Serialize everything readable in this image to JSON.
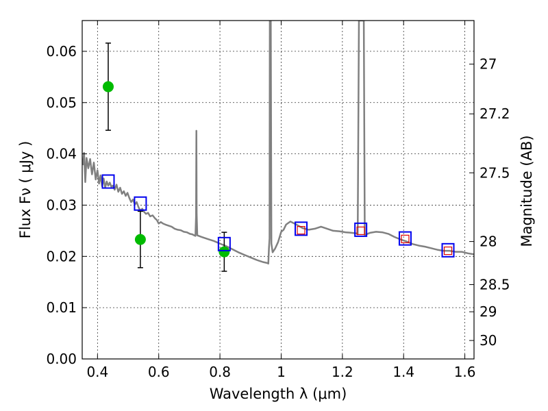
{
  "chart_data": {
    "type": "scatter",
    "xlabel": "Wavelength  λ (μm)",
    "ylabel": "Flux  Fν  ( μJy )",
    "y2label": "Magnitude (AB)",
    "xlim": [
      0.35,
      1.63
    ],
    "ylim": [
      0.0,
      0.066
    ],
    "grid": true,
    "x_ticks": [
      0.4,
      0.6,
      0.8,
      1.0,
      1.2,
      1.4,
      1.6
    ],
    "x_tick_labels": [
      "0.4",
      "0.6",
      "0.8",
      "1",
      "1.2",
      "1.4",
      "1.6"
    ],
    "y_ticks": [
      0.0,
      0.01,
      0.02,
      0.03,
      0.04,
      0.05,
      0.06
    ],
    "y_tick_labels": [
      "0.00",
      "0.01",
      "0.02",
      "0.03",
      "0.04",
      "0.05",
      "0.06"
    ],
    "y2_ticks": [
      {
        "label": "27",
        "flux": 0.0575
      },
      {
        "label": "27.2",
        "flux": 0.0478
      },
      {
        "label": "27.5",
        "flux": 0.0363
      },
      {
        "label": "28",
        "flux": 0.0229
      },
      {
        "label": "28.5",
        "flux": 0.0145
      },
      {
        "label": "29",
        "flux": 0.0092
      },
      {
        "label": "30",
        "flux": 0.0036
      }
    ],
    "observed_points": {
      "color": "#00bb00",
      "points": [
        {
          "x": 0.435,
          "y": 0.0531,
          "err": 0.0085
        },
        {
          "x": 0.54,
          "y": 0.0233,
          "err": 0.0055
        },
        {
          "x": 0.814,
          "y": 0.0209,
          "err": 0.0038
        }
      ]
    },
    "model_synthetic_boxes": {
      "color": "#0000ee",
      "points": [
        {
          "x": 0.435,
          "y": 0.0346
        },
        {
          "x": 0.54,
          "y": 0.0303
        },
        {
          "x": 0.814,
          "y": 0.0224
        },
        {
          "x": 1.065,
          "y": 0.0254
        },
        {
          "x": 1.26,
          "y": 0.0252
        },
        {
          "x": 1.405,
          "y": 0.0235
        },
        {
          "x": 1.545,
          "y": 0.0212
        }
      ]
    },
    "upper_limit_boxes": {
      "color": "#dd0000",
      "points": [
        {
          "x": 1.065,
          "y": 0.0251
        },
        {
          "x": 1.26,
          "y": 0.025
        },
        {
          "x": 1.405,
          "y": 0.0234
        },
        {
          "x": 1.545,
          "y": 0.0211
        }
      ]
    },
    "model_spectrum": {
      "color": "#808080",
      "points": [
        [
          0.352,
          0.0378
        ],
        [
          0.356,
          0.0402
        ],
        [
          0.36,
          0.0345
        ],
        [
          0.364,
          0.0392
        ],
        [
          0.37,
          0.0372
        ],
        [
          0.376,
          0.039
        ],
        [
          0.382,
          0.036
        ],
        [
          0.388,
          0.0383
        ],
        [
          0.394,
          0.035
        ],
        [
          0.4,
          0.0368
        ],
        [
          0.405,
          0.0342
        ],
        [
          0.41,
          0.0358
        ],
        [
          0.415,
          0.0337
        ],
        [
          0.42,
          0.0352
        ],
        [
          0.425,
          0.0334
        ],
        [
          0.43,
          0.0346
        ],
        [
          0.435,
          0.0338
        ],
        [
          0.44,
          0.0344
        ],
        [
          0.445,
          0.0336
        ],
        [
          0.45,
          0.0338
        ],
        [
          0.456,
          0.033
        ],
        [
          0.462,
          0.034
        ],
        [
          0.468,
          0.0326
        ],
        [
          0.474,
          0.0334
        ],
        [
          0.48,
          0.0322
        ],
        [
          0.486,
          0.0327
        ],
        [
          0.492,
          0.0318
        ],
        [
          0.498,
          0.0324
        ],
        [
          0.504,
          0.0314
        ],
        [
          0.51,
          0.0306
        ],
        [
          0.516,
          0.0311
        ],
        [
          0.522,
          0.0301
        ],
        [
          0.528,
          0.0306
        ],
        [
          0.534,
          0.0296
        ],
        [
          0.54,
          0.0289
        ],
        [
          0.546,
          0.0293
        ],
        [
          0.552,
          0.0287
        ],
        [
          0.558,
          0.0283
        ],
        [
          0.565,
          0.0285
        ],
        [
          0.572,
          0.0278
        ],
        [
          0.58,
          0.028
        ],
        [
          0.588,
          0.0274
        ],
        [
          0.594,
          0.0271
        ],
        [
          0.6,
          0.0264
        ],
        [
          0.607,
          0.0267
        ],
        [
          0.614,
          0.0264
        ],
        [
          0.622,
          0.0262
        ],
        [
          0.632,
          0.026
        ],
        [
          0.642,
          0.0258
        ],
        [
          0.652,
          0.0254
        ],
        [
          0.662,
          0.0252
        ],
        [
          0.672,
          0.0251
        ],
        [
          0.682,
          0.0248
        ],
        [
          0.692,
          0.0247
        ],
        [
          0.702,
          0.0244
        ],
        [
          0.71,
          0.0243
        ],
        [
          0.716,
          0.0241
        ],
        [
          0.72,
          0.024
        ],
        [
          0.722,
          0.0278
        ],
        [
          0.723,
          0.0445
        ],
        [
          0.724,
          0.0283
        ],
        [
          0.726,
          0.0241
        ],
        [
          0.74,
          0.0238
        ],
        [
          0.76,
          0.0234
        ],
        [
          0.78,
          0.023
        ],
        [
          0.8,
          0.0225
        ],
        [
          0.82,
          0.022
        ],
        [
          0.84,
          0.0214
        ],
        [
          0.86,
          0.0208
        ],
        [
          0.88,
          0.0203
        ],
        [
          0.9,
          0.0198
        ],
        [
          0.92,
          0.0193
        ],
        [
          0.94,
          0.0189
        ],
        [
          0.955,
          0.0187
        ],
        [
          0.958,
          0.0186
        ],
        [
          0.96,
          0.0215
        ],
        [
          0.962,
          0.0235
        ],
        [
          0.963,
          0.066
        ],
        [
          0.966,
          0.066
        ],
        [
          0.968,
          0.0225
        ],
        [
          0.972,
          0.0208
        ],
        [
          0.98,
          0.0215
        ],
        [
          0.99,
          0.0228
        ],
        [
          1.0,
          0.0248
        ],
        [
          1.008,
          0.0252
        ],
        [
          1.016,
          0.0262
        ],
        [
          1.03,
          0.0268
        ],
        [
          1.05,
          0.0262
        ],
        [
          1.07,
          0.0255
        ],
        [
          1.09,
          0.0252
        ],
        [
          1.11,
          0.0254
        ],
        [
          1.13,
          0.0258
        ],
        [
          1.15,
          0.0254
        ],
        [
          1.17,
          0.025
        ],
        [
          1.19,
          0.0249
        ],
        [
          1.21,
          0.0247
        ],
        [
          1.23,
          0.0246
        ],
        [
          1.245,
          0.0245
        ],
        [
          1.25,
          0.0243
        ],
        [
          1.254,
          0.066
        ],
        [
          1.27,
          0.066
        ],
        [
          1.273,
          0.0242
        ],
        [
          1.29,
          0.0246
        ],
        [
          1.31,
          0.0248
        ],
        [
          1.33,
          0.0247
        ],
        [
          1.35,
          0.0244
        ],
        [
          1.37,
          0.0238
        ],
        [
          1.39,
          0.0233
        ],
        [
          1.41,
          0.0229
        ],
        [
          1.43,
          0.0224
        ],
        [
          1.45,
          0.0221
        ],
        [
          1.47,
          0.0219
        ],
        [
          1.49,
          0.0216
        ],
        [
          1.51,
          0.0213
        ],
        [
          1.53,
          0.0211
        ],
        [
          1.55,
          0.0211
        ],
        [
          1.57,
          0.0209
        ],
        [
          1.59,
          0.0209
        ],
        [
          1.61,
          0.0206
        ],
        [
          1.63,
          0.0204
        ]
      ]
    }
  }
}
